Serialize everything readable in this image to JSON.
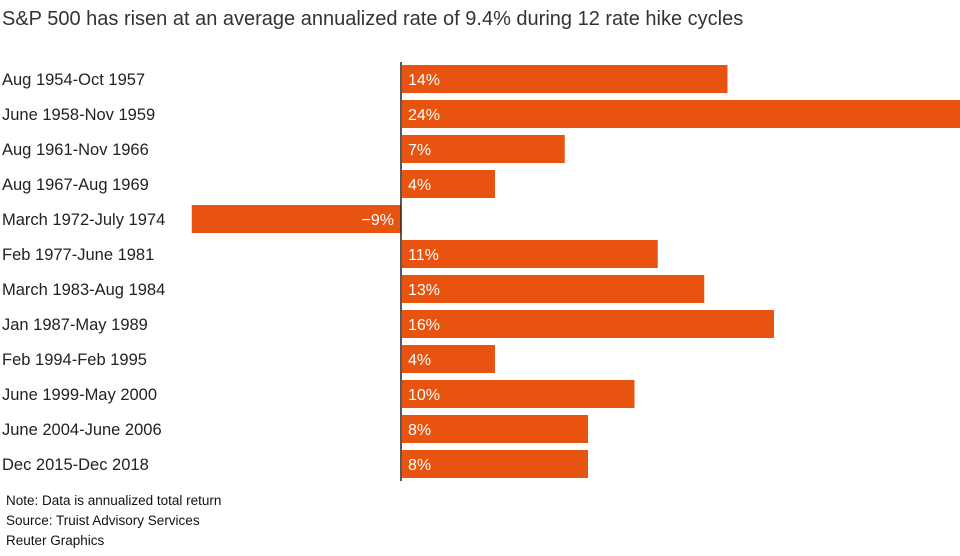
{
  "title": "S&P 500 has risen at an average annualized rate of 9.4% during 12 rate hike cycles",
  "notes": {
    "note": "Note: Data is annualized total return",
    "source": "Source: Truist Advisory Services",
    "credit": "Reuter Graphics"
  },
  "colors": {
    "bar": "#e8540f",
    "axis": "#222222",
    "label_on_bar": "#ffffff"
  },
  "chart_data": {
    "type": "bar",
    "orientation": "horizontal",
    "title": "S&P 500 has risen at an average annualized rate of 9.4% during 12 rate hike cycles",
    "categories": [
      "Aug 1954-Oct 1957",
      "June 1958-Nov 1959",
      "Aug 1961-Nov 1966",
      "Aug 1967-Aug 1969",
      "March 1972-July 1974",
      "Feb 1977-June 1981",
      "March 1983-Aug 1984",
      "Jan 1987-May 1989",
      "Feb 1994-Feb 1995",
      "June 1999-May 2000",
      "June 2004-June 2006",
      "Dec 2015-Dec 2018"
    ],
    "values": [
      14,
      24,
      7,
      4,
      -9,
      11,
      13,
      16,
      4,
      10,
      8,
      8
    ],
    "labels": [
      "14%",
      "24%",
      "7%",
      "4%",
      "−9%",
      "11%",
      "13%",
      "16%",
      "4%",
      "10%",
      "8%",
      "8%"
    ],
    "unit": "%",
    "xlim": [
      -9,
      24
    ],
    "grid": false,
    "legend": "none"
  }
}
